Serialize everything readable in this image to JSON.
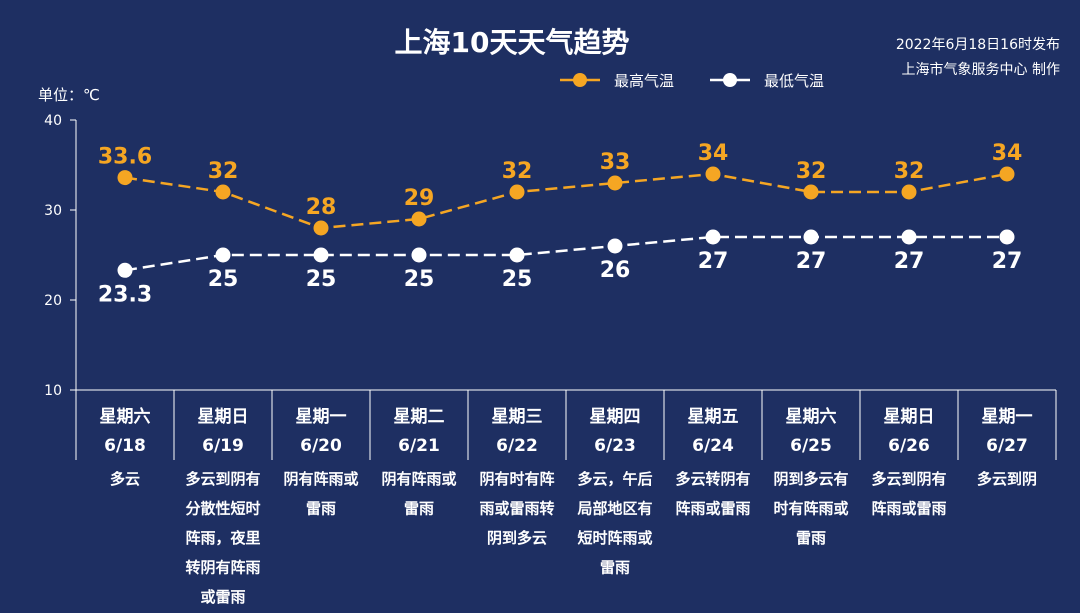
{
  "header": {
    "title": "上海10天天气趋势",
    "publish_time": "2022年6月18日16时发布",
    "publisher": "上海市气象服务中心 制作",
    "unit_label": "单位：℃"
  },
  "colors": {
    "background": "#1e2f62",
    "high": "#f5a623",
    "low": "#ffffff"
  },
  "chart_data": {
    "type": "line",
    "title": "上海10天天气趋势",
    "ylabel": "单位：℃",
    "ylim": [
      10,
      40
    ],
    "yticks": [
      "10",
      "20",
      "30",
      "40"
    ],
    "legend_position": "top-right",
    "categories": [
      "6/18",
      "6/19",
      "6/20",
      "6/21",
      "6/22",
      "6/23",
      "6/24",
      "6/25",
      "6/26",
      "6/27"
    ],
    "weekdays": [
      "星期六",
      "星期日",
      "星期一",
      "星期二",
      "星期三",
      "星期四",
      "星期五",
      "星期六",
      "星期日",
      "星期一"
    ],
    "weather": [
      [
        "多云"
      ],
      [
        "多云到阴有",
        "分散性短时",
        "阵雨，夜里",
        "转阴有阵雨",
        "或雷雨"
      ],
      [
        "阴有阵雨或",
        "雷雨"
      ],
      [
        "阴有阵雨或",
        "雷雨"
      ],
      [
        "阴有时有阵",
        "雨或雷雨转",
        "阴到多云"
      ],
      [
        "多云，午后",
        "局部地区有",
        "短时阵雨或",
        "雷雨"
      ],
      [
        "多云转阴有",
        "阵雨或雷雨"
      ],
      [
        "阴到多云有",
        "时有阵雨或",
        "雷雨"
      ],
      [
        "多云到阴有",
        "阵雨或雷雨"
      ],
      [
        "多云到阴"
      ]
    ],
    "series": [
      {
        "name": "最高气温",
        "values": [
          33.6,
          32,
          28,
          29,
          32,
          33,
          34,
          32,
          32,
          34
        ],
        "labels": [
          "33.6",
          "32",
          "28",
          "29",
          "32",
          "33",
          "34",
          "32",
          "32",
          "34"
        ]
      },
      {
        "name": "最低气温",
        "values": [
          23.3,
          25,
          25,
          25,
          25,
          26,
          27,
          27,
          27,
          27
        ],
        "labels": [
          "23.3",
          "25",
          "25",
          "25",
          "25",
          "26",
          "27",
          "27",
          "27",
          "27"
        ]
      }
    ]
  }
}
